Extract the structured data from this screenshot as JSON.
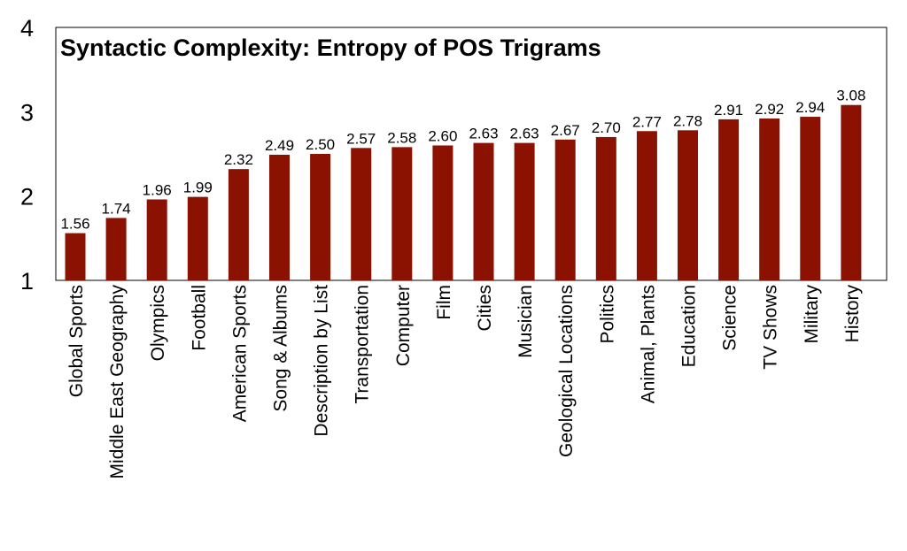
{
  "chart_data": {
    "type": "bar",
    "title": "Syntactic Complexity: Entropy of POS Trigrams",
    "xlabel": "",
    "ylabel": "",
    "ylim": [
      1,
      4
    ],
    "yticks": [
      "1",
      "2",
      "3",
      "4"
    ],
    "grid": false,
    "legend": "none",
    "bar_color": "#8B1200",
    "categories": [
      "Global Sports",
      "Middle East Geography",
      "Olympics",
      "Football",
      "American Sports",
      "Song & Albums",
      "Description by List",
      "Transportation",
      "Computer",
      "Film",
      "Cities",
      "Musician",
      "Geological Locations",
      "Politics",
      "Animal, Plants",
      "Education",
      "Science",
      "TV Shows",
      "Military",
      "History"
    ],
    "values": [
      1.56,
      1.74,
      1.96,
      1.99,
      2.32,
      2.49,
      2.5,
      2.57,
      2.58,
      2.6,
      2.63,
      2.63,
      2.67,
      2.7,
      2.77,
      2.78,
      2.91,
      2.92,
      2.94,
      3.08
    ],
    "value_labels": [
      "1.56",
      "1.74",
      "1.96",
      "1.99",
      "2.32",
      "2.49",
      "2.50",
      "2.57",
      "2.58",
      "2.60",
      "2.63",
      "2.63",
      "2.67",
      "2.70",
      "2.77",
      "2.78",
      "2.91",
      "2.92",
      "2.94",
      "3.08"
    ]
  }
}
